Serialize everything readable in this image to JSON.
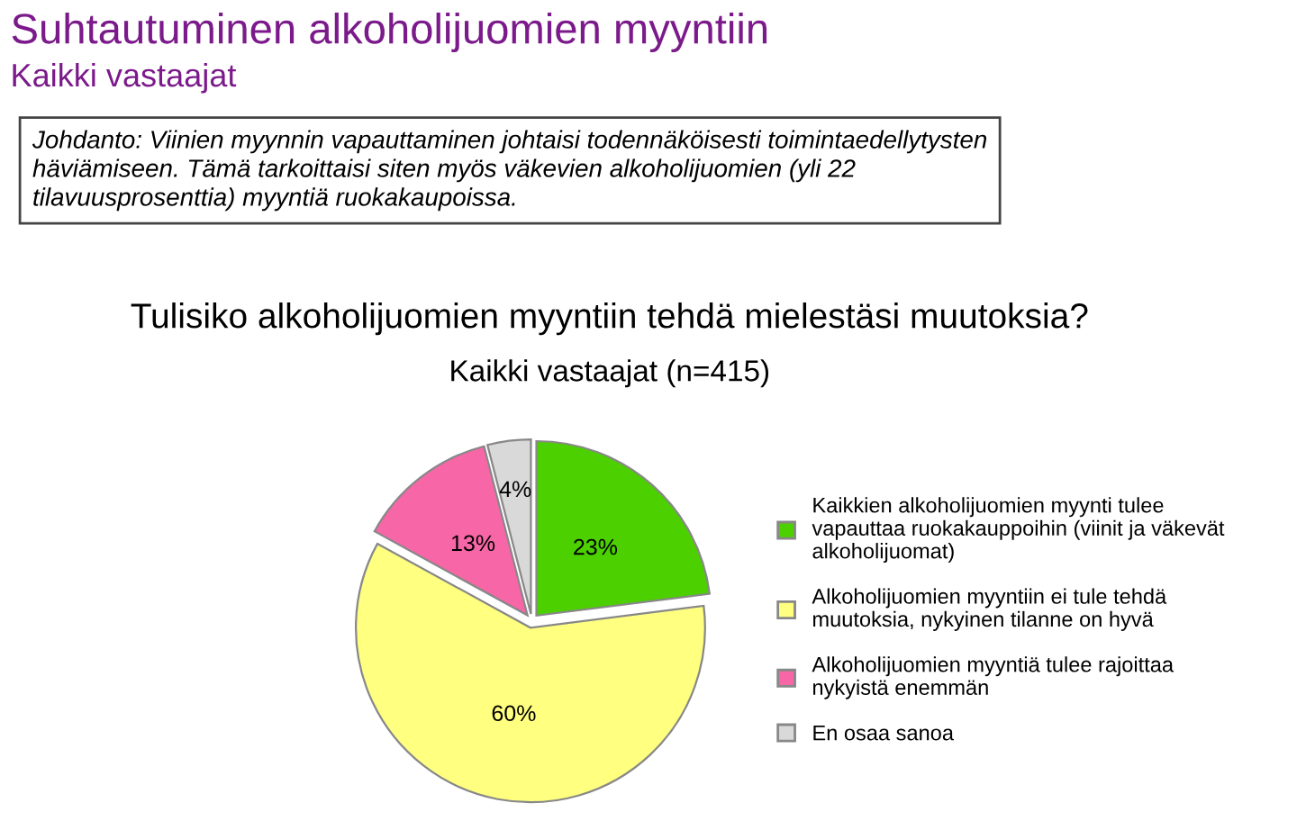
{
  "chart_data": {
    "type": "pie",
    "title": "Suhtautuminen alkoholijuomien myyntiin",
    "subtitle": "Kaikki vastaajat",
    "annotations": [
      "Johdanto: Viinien myynnin vapauttaminen johtaisi todennäköisesti toimintaedellytysten\nhäviämiseen. Tämä tarkoittaisi siten myös väkevien alkoholijuomien (yli 22\ntilavuusprosenttia) myyntiä ruokakaupoissa.",
      "Tulisiko alkoholijuomien myyntiin tehdä mielestäsi muutoksia?",
      "Kaikki vastaajat (n=415)"
    ],
    "categories": [
      "Kaikkien alkoholijuomien myynti tulee\nvapauttaa ruokakauppoihin (viinit ja väkevät\nalkoholijuomat)",
      "Alkoholijuomien myyntiin ei tule tehdä\nmuutoksia, nykyinen tilanne on hyvä",
      "Alkoholijuomien myyntiä tulee rajoittaa\nnykyistä enemmän",
      "En osaa sanoa"
    ],
    "values": [
      23,
      60,
      13,
      4
    ],
    "value_labels": [
      "23%",
      "60%",
      "13%",
      "4%"
    ],
    "colors": [
      "#4cd000",
      "#ffff80",
      "#f766a6",
      "#d9d9d9"
    ],
    "legend": "right"
  }
}
